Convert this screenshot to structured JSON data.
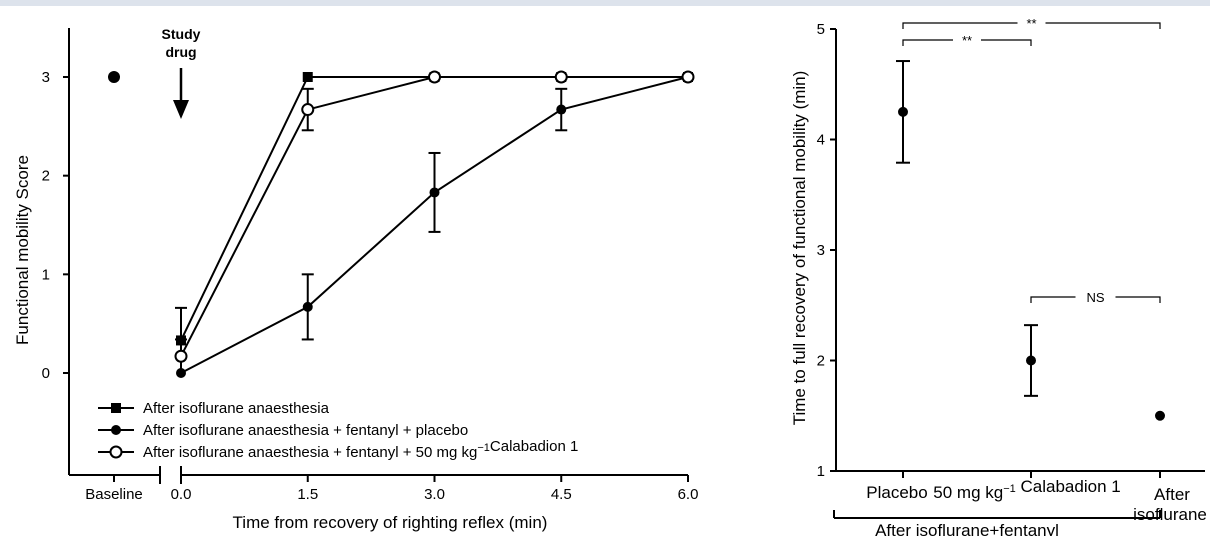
{
  "chart_data": [
    {
      "type": "line",
      "xlabel": "Time from recovery of righting reflex (min)",
      "ylabel": "Functional mobility Score",
      "xlim": [
        0,
        6
      ],
      "ylim": [
        -0.1,
        3.5
      ],
      "xticks": [
        "0.0",
        "1.5",
        "3.0",
        "4.5",
        "6.0"
      ],
      "yticks": [
        "0",
        "1",
        "2",
        "3"
      ],
      "baseline_label": "Baseline",
      "baseline_value": 3,
      "annotation": [
        "Study",
        "drug"
      ],
      "legend_position": "bottom-left",
      "series": [
        {
          "name": "After isoflurane anaesthesia",
          "marker": "square",
          "x": [
            0,
            1.5,
            3,
            4.5,
            6
          ],
          "y": [
            0.33,
            3,
            3,
            3,
            3
          ],
          "err": [
            0.33,
            0,
            0,
            0,
            0
          ]
        },
        {
          "name": "After isoflurane anaesthesia + fentanyl + placebo",
          "marker": "filled-circle",
          "x": [
            0,
            1.5,
            3,
            4.5,
            6
          ],
          "y": [
            0,
            0.67,
            1.83,
            2.67,
            3
          ],
          "err": [
            0,
            0.33,
            0.4,
            0.21,
            0
          ]
        },
        {
          "name": "After isoflurane anaesthesia + fentanyl + 50 mg kg⁻¹Calabadion 1",
          "marker": "open-circle",
          "x": [
            0,
            1.5,
            3,
            4.5,
            6
          ],
          "y": [
            0.17,
            2.67,
            3,
            3,
            3
          ],
          "err": [
            0.17,
            0.21,
            0,
            0,
            0
          ]
        }
      ]
    },
    {
      "type": "scatter",
      "ylabel": "Time to full recovery of functional mobility (min)",
      "ylim": [
        1,
        5
      ],
      "yticks": [
        "1",
        "2",
        "3",
        "4",
        "5"
      ],
      "categories": [
        "Placebo",
        "50 mg kg⁻¹ Calabadion 1",
        "After isoflurane"
      ],
      "category_lines": [
        [
          "Placebo"
        ],
        [
          "50 mg kg⁻¹ Calabadion 1"
        ],
        [
          "After",
          "isoflurane"
        ]
      ],
      "values": [
        4.25,
        2.0,
        1.5
      ],
      "err": [
        0.46,
        0.32,
        0
      ],
      "group_label": "After isoflurane+fentanyl",
      "significance": [
        {
          "from": 0,
          "to": 2,
          "label": "**"
        },
        {
          "from": 0,
          "to": 1,
          "label": "**"
        },
        {
          "from": 1,
          "to": 2,
          "label": "NS"
        }
      ]
    }
  ]
}
